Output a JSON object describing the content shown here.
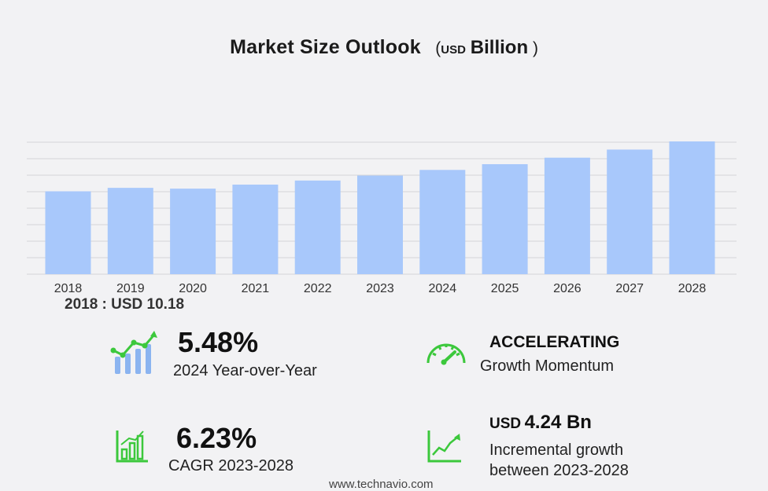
{
  "title": {
    "main": "Market Size Outlook",
    "unit_prefix": "USD",
    "unit_suffix": "Billion"
  },
  "base_label": "2018 : USD  10.18",
  "stats": {
    "yoy": {
      "value": "5.48%",
      "label": "2024 Year-over-Year"
    },
    "momentum": {
      "value": "ACCELERATING",
      "label": "Growth Momentum"
    },
    "cagr": {
      "value": "6.23%",
      "label": "CAGR 2023-2028"
    },
    "incremental": {
      "prefix": "USD",
      "value": "4.24 Bn",
      "label_line1": "Incremental growth",
      "label_line2": "between 2023-2028"
    }
  },
  "footer": {
    "url": "www.technavio.com"
  },
  "colors": {
    "bar": "#a8c8fb",
    "icon_green": "#3cc83c",
    "icon_blue": "#8bb4f0"
  },
  "icons": {
    "yoy": "growth-chart-icon",
    "momentum": "speedometer-icon",
    "cagr": "bar-chart-icon",
    "incremental": "trend-line-icon"
  },
  "chart_data": {
    "type": "bar",
    "categories": [
      "2018",
      "2019",
      "2020",
      "2021",
      "2022",
      "2023",
      "2024",
      "2025",
      "2026",
      "2027",
      "2028"
    ],
    "values": [
      10.18,
      10.6,
      10.5,
      11.0,
      11.5,
      12.1,
      12.8,
      13.5,
      14.3,
      15.3,
      16.3
    ],
    "title": "Market Size Outlook",
    "xlabel": "",
    "ylabel": "",
    "ylim": [
      0,
      16.3
    ],
    "grid": true,
    "legend": "none"
  }
}
